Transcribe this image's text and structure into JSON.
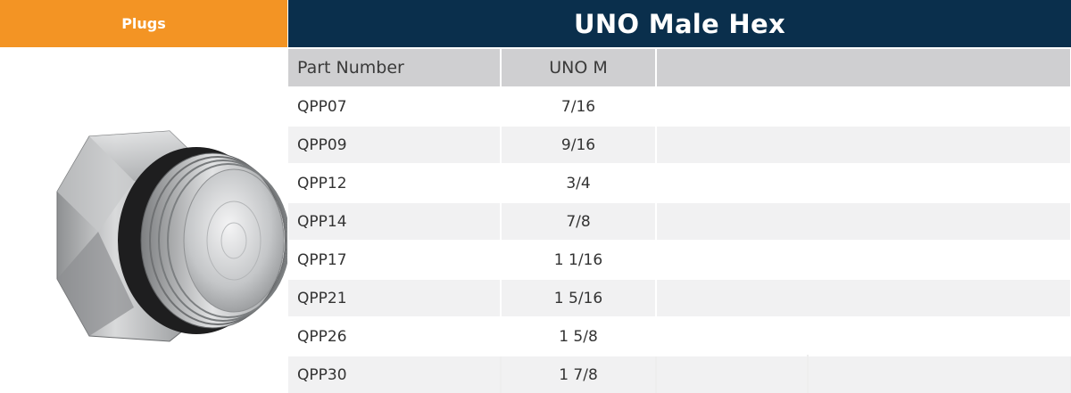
{
  "category": {
    "label": "Plugs"
  },
  "title": "UNO Male Hex",
  "table": {
    "headers": [
      "Part Number",
      "UNO M"
    ],
    "rows": [
      {
        "part": "QPP07",
        "size": "7/16"
      },
      {
        "part": "QPP09",
        "size": "9/16"
      },
      {
        "part": "QPP12",
        "size": "3/4"
      },
      {
        "part": "QPP14",
        "size": "7/8"
      },
      {
        "part": "QPP17",
        "size": "1 1/16"
      },
      {
        "part": "QPP21",
        "size": "1 5/16"
      },
      {
        "part": "QPP26",
        "size": "1 5/8"
      },
      {
        "part": "QPP30",
        "size": "1 7/8"
      }
    ]
  },
  "colors": {
    "accent": "#f39424",
    "title_bg": "#0a2f4c",
    "header_bg": "#cfcfd1",
    "stripe": "#f1f1f2"
  }
}
